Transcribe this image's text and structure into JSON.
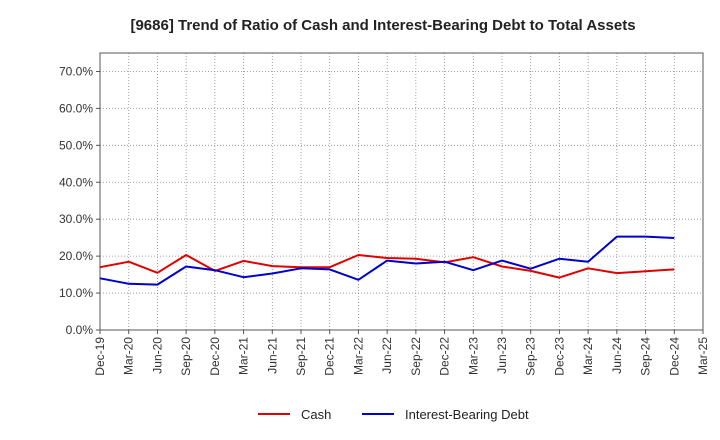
{
  "chart_data": {
    "type": "line",
    "title": "[9686]  Trend of Ratio of Cash and Interest-Bearing Debt to Total Assets",
    "xlabel": "",
    "ylabel": "",
    "ylim": [
      0,
      75
    ],
    "yticks": [
      0,
      10,
      20,
      30,
      40,
      50,
      60,
      70
    ],
    "ytick_labels": [
      "0.0%",
      "10.0%",
      "20.0%",
      "30.0%",
      "40.0%",
      "50.0%",
      "60.0%",
      "70.0%"
    ],
    "categories": [
      "Dec-19",
      "Mar-20",
      "Jun-20",
      "Sep-20",
      "Dec-20",
      "Mar-21",
      "Jun-21",
      "Sep-21",
      "Dec-21",
      "Mar-22",
      "Jun-22",
      "Sep-22",
      "Dec-22",
      "Mar-23",
      "Jun-23",
      "Sep-23",
      "Dec-23",
      "Mar-24",
      "Jun-24",
      "Sep-24",
      "Dec-24",
      "Mar-25"
    ],
    "grid": true,
    "legend_position": "bottom",
    "series": [
      {
        "name": "Cash",
        "color": "#e00000",
        "values": [
          17.0,
          18.5,
          15.5,
          20.3,
          16.0,
          18.7,
          17.3,
          17.0,
          17.0,
          20.3,
          19.5,
          19.3,
          18.3,
          19.7,
          17.2,
          16.0,
          14.2,
          16.7,
          15.4,
          15.9,
          16.4,
          null
        ]
      },
      {
        "name": "Interest-Bearing Debt",
        "color": "#0000cc",
        "values": [
          14.0,
          12.5,
          12.3,
          17.2,
          16.2,
          14.3,
          15.3,
          16.7,
          16.4,
          13.6,
          18.8,
          18.0,
          18.5,
          16.2,
          18.8,
          16.6,
          19.3,
          18.5,
          25.3,
          25.3,
          24.9,
          null
        ]
      }
    ]
  }
}
